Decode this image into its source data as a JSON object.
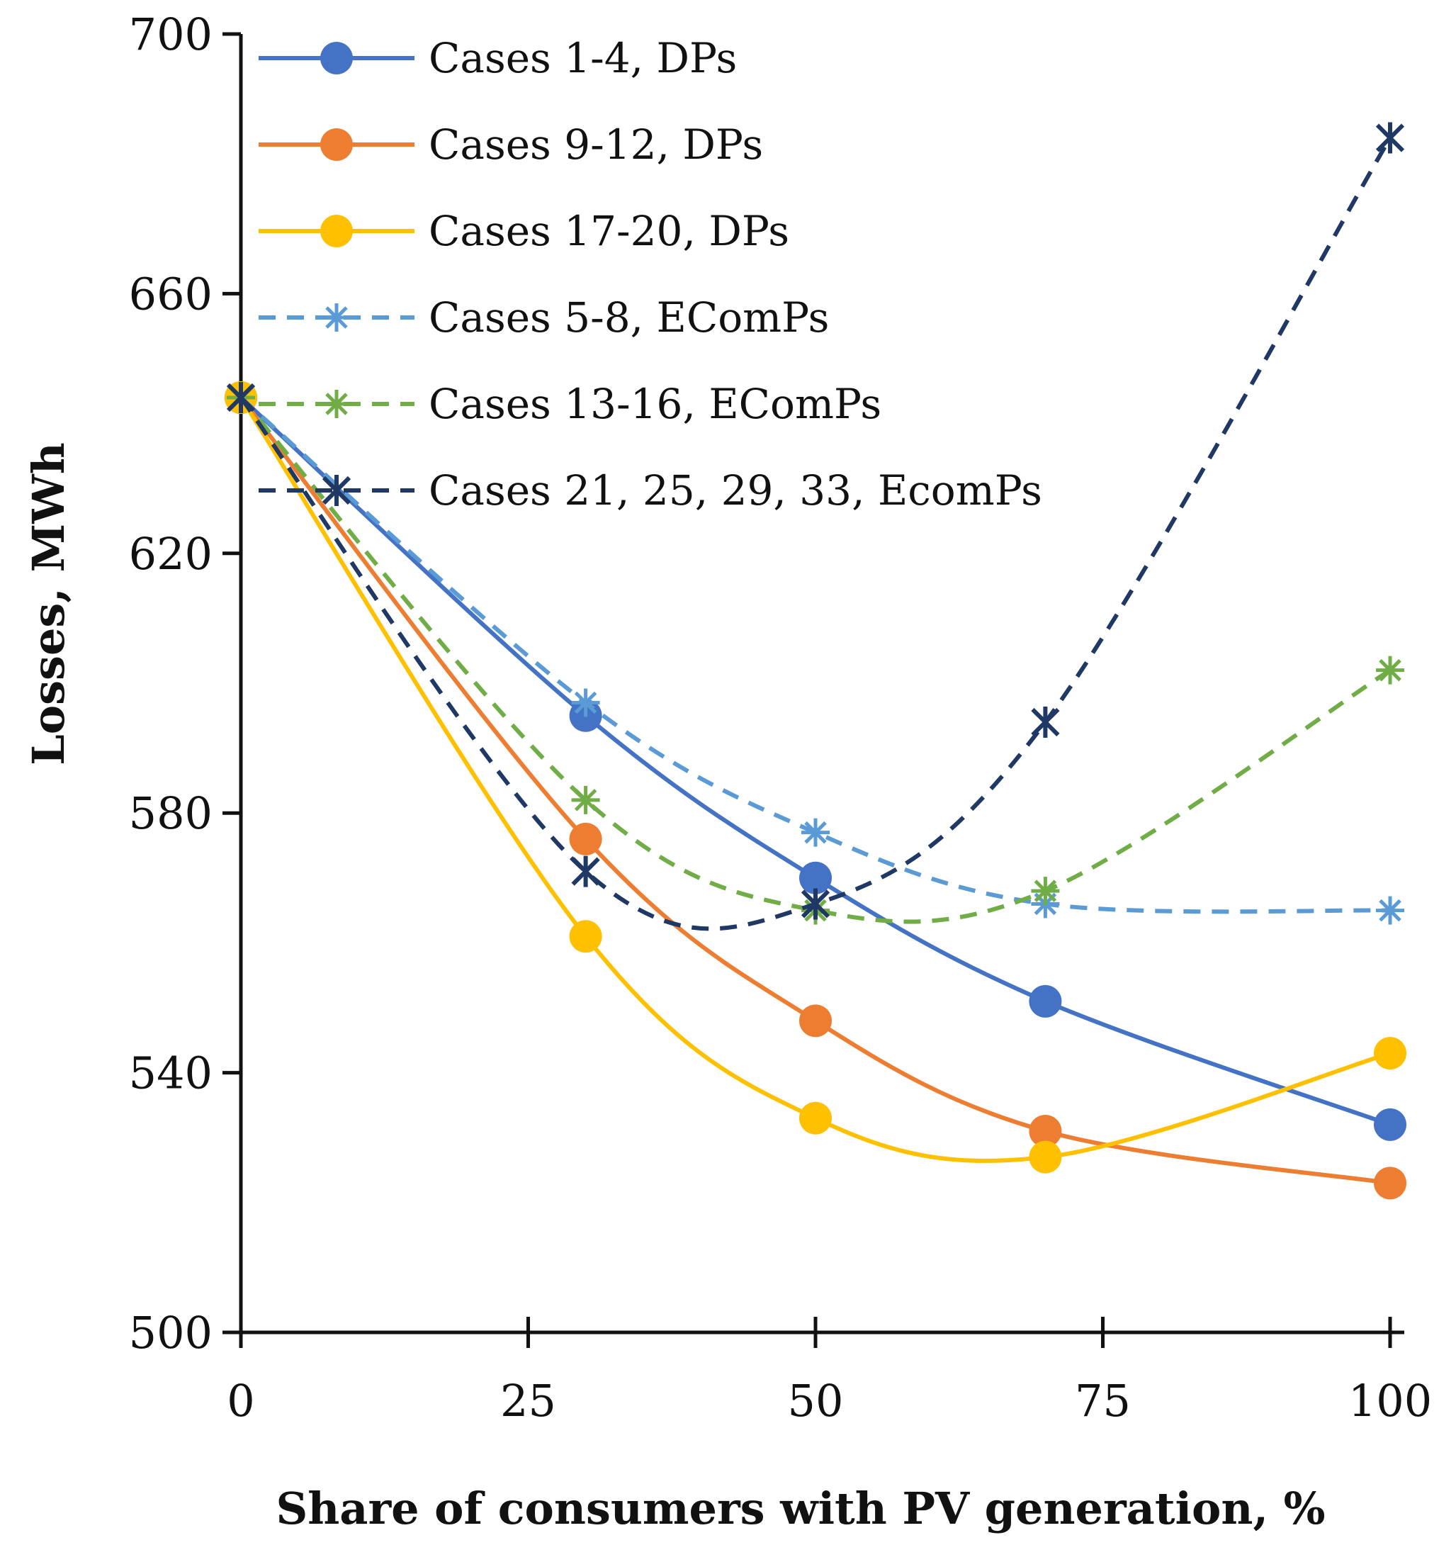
{
  "chart_data": {
    "type": "line",
    "title": "",
    "xlabel": "Share of consumers with PV generation, %",
    "ylabel": "Losses, MWh",
    "xlim": [
      0,
      100
    ],
    "ylim": [
      500,
      700
    ],
    "xticks": [
      0,
      25,
      50,
      75,
      100
    ],
    "yticks": [
      500,
      540,
      580,
      620,
      660,
      700
    ],
    "xtick_labels": [
      "0",
      "25",
      "50",
      "75",
      "100"
    ],
    "ytick_labels": [
      "500",
      "540",
      "580",
      "620",
      "660",
      "700"
    ],
    "legend_position": "top-left",
    "grid": false,
    "series": [
      {
        "name": "Cases 1-4, DPs",
        "color": "#4472C4",
        "dash": "solid",
        "marker": "circle",
        "x": [
          0,
          30,
          50,
          70,
          100
        ],
        "y": [
          644,
          595,
          570,
          551,
          532
        ]
      },
      {
        "name": "Cases 9-12, DPs",
        "color": "#ED7D31",
        "dash": "solid",
        "marker": "circle",
        "x": [
          0,
          30,
          50,
          70,
          100
        ],
        "y": [
          644,
          576,
          548,
          531,
          523
        ]
      },
      {
        "name": "Cases 17-20, DPs",
        "color": "#FFC000",
        "dash": "solid",
        "marker": "circle",
        "x": [
          0,
          30,
          50,
          70,
          100
        ],
        "y": [
          644,
          561,
          533,
          527,
          543
        ]
      },
      {
        "name": "Cases 5-8, EComPs",
        "color": "#5B9BD5",
        "dash": "dashed",
        "marker": "asterisk",
        "x": [
          0,
          30,
          50,
          70,
          100
        ],
        "y": [
          644,
          597,
          577,
          566,
          565
        ]
      },
      {
        "name": "Cases 13-16, EComPs",
        "color": "#70AD47",
        "dash": "dashed",
        "marker": "asterisk",
        "x": [
          0,
          30,
          50,
          70,
          100
        ],
        "y": [
          644,
          582,
          565,
          568,
          602
        ]
      },
      {
        "name": "Cases 21, 25, 29, 33, EcomPs",
        "color": "#203864",
        "dash": "dashed",
        "marker": "x-star",
        "x": [
          0,
          30,
          50,
          70,
          100
        ],
        "y": [
          644,
          571,
          566,
          594,
          684
        ]
      }
    ]
  }
}
